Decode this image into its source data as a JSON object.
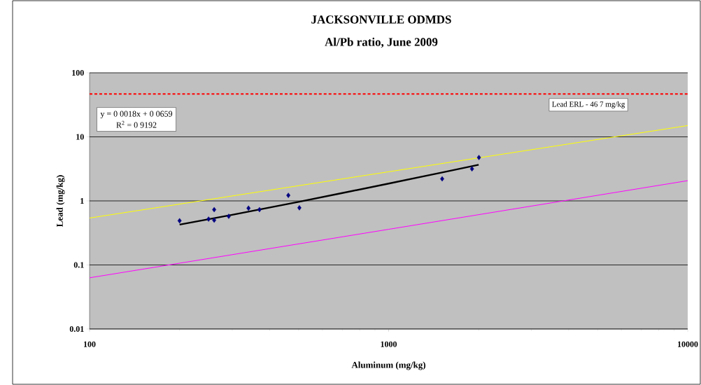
{
  "chart_data": {
    "type": "scatter",
    "title": "JACKSONVILLE ODMDS",
    "subtitle": "Al/Pb ratio, June 2009",
    "xlabel": "Aluminum (mg/kg)",
    "ylabel": "Lead (mg/kg)",
    "log": "xy",
    "grid": "y",
    "xlim": [
      100,
      10000
    ],
    "xticks": [
      100,
      1000,
      10000
    ],
    "ylim": [
      0.01,
      100
    ],
    "yticks": [
      0.01,
      0.1,
      1,
      10,
      100
    ],
    "series": [
      {
        "marker": "diamond",
        "color": "#000080",
        "x": [
          200,
          250,
          261,
          261,
          292,
          340,
          370,
          462,
          503,
          1510,
          1900,
          2004
        ],
        "values": [
          0.49,
          0.52,
          0.73,
          0.5,
          0.575,
          0.77,
          0.73,
          1.22,
          0.78,
          2.21,
          3.16,
          4.76
        ]
      },
      {
        "type": "line",
        "marker": "none",
        "color": "#000000",
        "x": [
          200,
          300,
          500,
          700,
          1000,
          1500,
          2000
        ],
        "values": [
          0.426,
          0.606,
          0.966,
          1.326,
          1.866,
          2.766,
          3.666
        ]
      },
      {
        "type": "line",
        "marker": "none",
        "color": "#ffff00",
        "x": [
          100,
          1000,
          10000
        ],
        "values": [
          0.54,
          2.85,
          15
        ]
      },
      {
        "type": "line",
        "marker": "none",
        "color": "#ff00ff",
        "x": [
          100,
          1000,
          10000
        ],
        "values": [
          0.063,
          0.36,
          2.07
        ]
      }
    ],
    "ref_lines": [
      {
        "axis": "y",
        "value": 46.7,
        "label": "Lead ERL - 46 7 mg/kg",
        "color": "#ff0000",
        "line_style": "dashed"
      }
    ],
    "annotations": [
      "y = 0 0018x + 0 0659",
      "R$^{2}$ = 0 9192"
    ]
  }
}
